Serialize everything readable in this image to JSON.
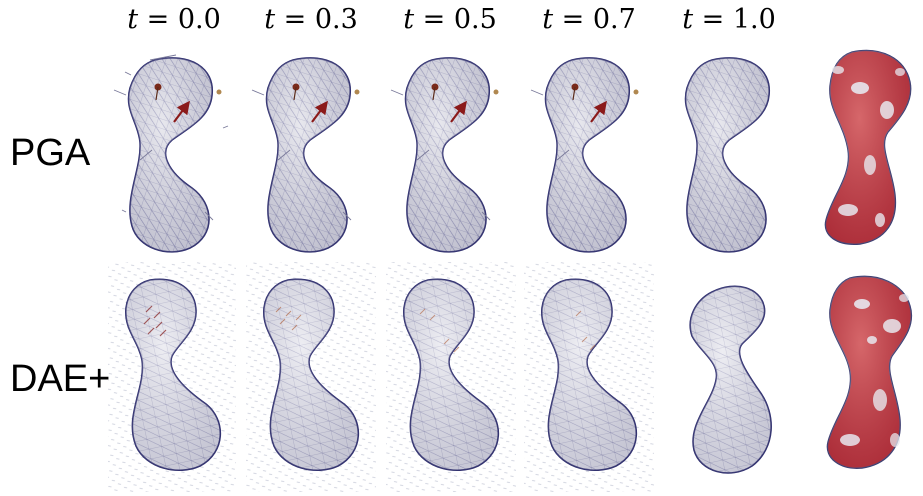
{
  "column_headers": [
    {
      "variable": "t",
      "value": "0.0"
    },
    {
      "variable": "t",
      "value": "0.3"
    },
    {
      "variable": "t",
      "value": "0.5"
    },
    {
      "variable": "t",
      "value": "0.7"
    },
    {
      "variable": "t",
      "value": "1.0"
    }
  ],
  "rows": [
    {
      "label": "PGA"
    },
    {
      "label": "DAE+"
    }
  ],
  "colors": {
    "mesh_fill": "#d9d9e2",
    "mesh_edge": "#3a3a7a",
    "arrow": "#8b1a1a",
    "error_overlay": "#c0151a"
  }
}
